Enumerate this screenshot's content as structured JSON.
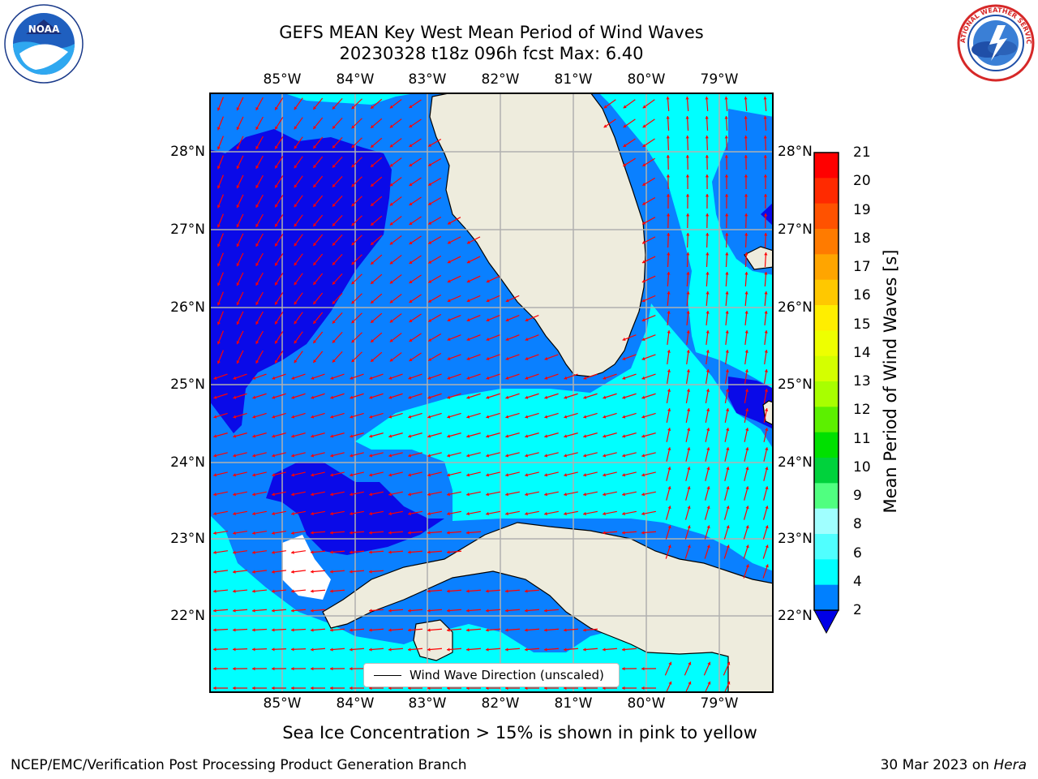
{
  "title": {
    "line1": "GEFS MEAN Key West Mean Period of Wind Waves",
    "line2": "20230328 t18z 096h fcst   Max: 6.40"
  },
  "map": {
    "lon_labels": [
      "85°W",
      "84°W",
      "83°W",
      "82°W",
      "81°W",
      "80°W",
      "79°W"
    ],
    "lat_labels": [
      "28°N",
      "27°N",
      "26°N",
      "25°N",
      "24°N",
      "23°N",
      "22°N"
    ],
    "lon_range": [
      -86.0,
      -78.5
    ],
    "lat_range": [
      21.1,
      28.7
    ],
    "legend_label": "Wind Wave Direction (unscaled)",
    "colors": {
      "land": "#eeecdd",
      "band_2_4": "#0a80ff",
      "band_below_2": "#0a0ae8",
      "band_4_6": "#00ffff",
      "arrow": "#ff0000",
      "grid": "#b0b0b0"
    }
  },
  "colorbar": {
    "ticks": [
      "21",
      "20",
      "19",
      "18",
      "17",
      "16",
      "15",
      "14",
      "13",
      "12",
      "11",
      "10",
      "9",
      "8",
      "6",
      "4",
      "2"
    ],
    "label": "Mean Period of Wind Waves [s]",
    "colors": [
      "#ff0000",
      "#ff2a00",
      "#ff5200",
      "#ff7b00",
      "#ffa500",
      "#ffc800",
      "#ffee00",
      "#eeff00",
      "#d4ff00",
      "#a8ff00",
      "#5cf000",
      "#00e000",
      "#00d23c",
      "#50ff80",
      "#a0ffff",
      "#50ffff",
      "#00ffff",
      "#0080ff"
    ],
    "extend_color": "#0000e6"
  },
  "footer": {
    "sea_ice_note": "Sea Ice Concentration > 15% is shown in pink to yellow",
    "credit": "NCEP/EMC/Verification Post Processing Product Generation Branch",
    "date": "30 Mar 2023 on ",
    "machine": "Hera"
  },
  "logos": {
    "noaa_text": "NOAA",
    "nws_text": "NATIONAL WEATHER SERVICE"
  }
}
